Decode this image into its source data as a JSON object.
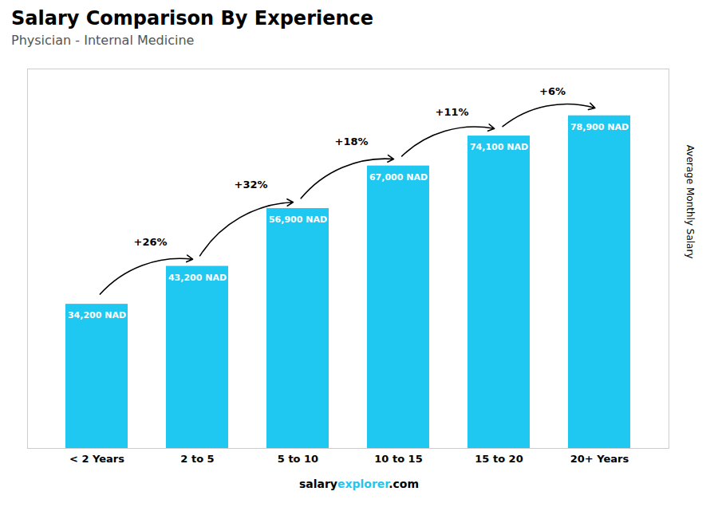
{
  "chart_data": {
    "type": "bar",
    "title": "Salary Comparison By Experience",
    "subtitle": "Physician - Internal Medicine",
    "ylabel": "Average Monthly Salary",
    "categories": [
      "< 2 Years",
      "2 to 5",
      "5 to 10",
      "10 to 15",
      "15 to 20",
      "20+ Years"
    ],
    "values": [
      34200,
      43200,
      56900,
      67000,
      74100,
      78900
    ],
    "value_labels": [
      "34,200 NAD",
      "43,200 NAD",
      "56,900 NAD",
      "67,000 NAD",
      "74,100 NAD",
      "78,900 NAD"
    ],
    "data_labels": true,
    "annotations": [
      "+26%",
      "+32%",
      "+18%",
      "+11%",
      "+6%"
    ],
    "footer": [
      "salary",
      "explorer",
      ".com"
    ],
    "color": "#1ec8f0",
    "ylim": [
      0,
      90000
    ],
    "grid": false,
    "tick_labels": "x"
  }
}
